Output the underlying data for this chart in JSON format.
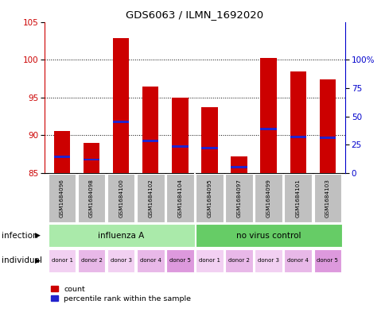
{
  "title": "GDS6063 / ILMN_1692020",
  "samples": [
    "GSM1684096",
    "GSM1684098",
    "GSM1684100",
    "GSM1684102",
    "GSM1684104",
    "GSM1684095",
    "GSM1684097",
    "GSM1684099",
    "GSM1684101",
    "GSM1684103"
  ],
  "bar_heights": [
    90.6,
    89.0,
    102.8,
    96.5,
    95.0,
    93.7,
    87.2,
    100.2,
    98.4,
    97.4
  ],
  "blue_marker_y": [
    87.2,
    86.8,
    91.8,
    89.3,
    88.5,
    88.3,
    85.8,
    90.8,
    89.8,
    89.7
  ],
  "bar_bottom": 85,
  "ymin": 85,
  "ymax": 105,
  "yticks_left": [
    85,
    90,
    95,
    100,
    105
  ],
  "yticks_right_pos": [
    85,
    88.75,
    92.5,
    96.25,
    100
  ],
  "yticks_right_labels": [
    "0",
    "25",
    "50",
    "75",
    "100%"
  ],
  "individual_labels": [
    "donor 1",
    "donor 2",
    "donor 3",
    "donor 4",
    "donor 5",
    "donor 1",
    "donor 2",
    "donor 3",
    "donor 4",
    "donor 5"
  ],
  "bar_color": "#cc0000",
  "blue_color": "#2222cc",
  "sample_bg_color": "#c0c0c0",
  "left_label_color": "#cc0000",
  "right_label_color": "#0000cc",
  "ind_colors": [
    "#f2d0f2",
    "#e8b8e8",
    "#f2d0f2",
    "#e8b8e8",
    "#dd99dd",
    "#f2d0f2",
    "#e8b8e8",
    "#f2d0f2",
    "#e8b8e8",
    "#dd99dd"
  ],
  "infect_color1": "#aaeaaa",
  "infect_color2": "#66cc66"
}
